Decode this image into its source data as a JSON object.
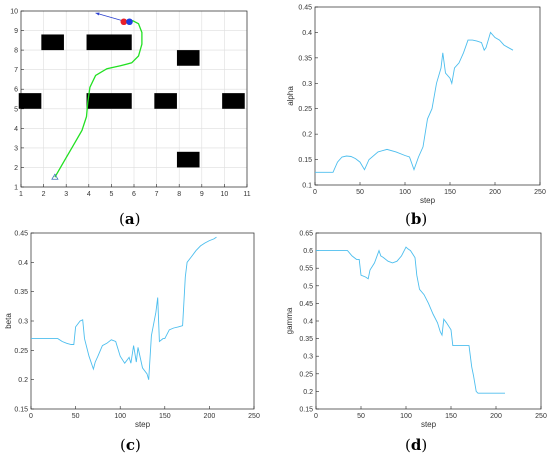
{
  "colors": {
    "line": "#4dbeee",
    "path": "#22e022",
    "obstacle": "#000000",
    "axis": "#262626",
    "grid": "#dedede",
    "start": "#3b6fb6",
    "goal_red": "#e8202a",
    "goal_blue": "#1f3fe0",
    "arrow": "#2a3fcf"
  },
  "chart_data": [
    {
      "type": "map",
      "caption": "a",
      "xlim": [
        1,
        11
      ],
      "ylim": [
        1,
        10
      ],
      "xticks": [
        1,
        2,
        3,
        4,
        5,
        6,
        7,
        8,
        9,
        10,
        11
      ],
      "yticks": [
        1,
        2,
        3,
        4,
        5,
        6,
        7,
        8,
        9,
        10
      ],
      "grid": true,
      "obstacles": [
        {
          "x0": 1.9,
          "x1": 2.9,
          "y0": 8.0,
          "y1": 8.8
        },
        {
          "x0": 3.9,
          "x1": 5.9,
          "y0": 8.0,
          "y1": 8.8
        },
        {
          "x0": 7.9,
          "x1": 8.9,
          "y0": 7.2,
          "y1": 8.0
        },
        {
          "x0": 0.9,
          "x1": 1.9,
          "y0": 5.0,
          "y1": 5.8
        },
        {
          "x0": 3.9,
          "x1": 5.9,
          "y0": 5.0,
          "y1": 5.8
        },
        {
          "x0": 6.9,
          "x1": 7.9,
          "y0": 5.0,
          "y1": 5.8
        },
        {
          "x0": 9.9,
          "x1": 10.9,
          "y0": 5.0,
          "y1": 5.8
        },
        {
          "x0": 7.9,
          "x1": 8.9,
          "y0": 2.0,
          "y1": 2.8
        }
      ],
      "path": [
        [
          2.5,
          1.5
        ],
        [
          2.9,
          2.3
        ],
        [
          3.3,
          3.1
        ],
        [
          3.7,
          3.9
        ],
        [
          3.9,
          4.6
        ],
        [
          3.95,
          5.3
        ],
        [
          4.05,
          6.1
        ],
        [
          4.3,
          6.7
        ],
        [
          4.8,
          7.05
        ],
        [
          5.4,
          7.2
        ],
        [
          5.9,
          7.35
        ],
        [
          6.2,
          7.7
        ],
        [
          6.35,
          8.3
        ],
        [
          6.35,
          8.9
        ],
        [
          6.2,
          9.35
        ],
        [
          5.95,
          9.5
        ],
        [
          5.7,
          9.5
        ]
      ],
      "start": [
        2.5,
        1.5
      ],
      "goal_red": [
        5.55,
        9.45
      ],
      "goal_blue": [
        5.8,
        9.45
      ],
      "arrow": {
        "from": [
          5.5,
          9.5
        ],
        "to": [
          4.3,
          9.9
        ]
      }
    },
    {
      "type": "line",
      "caption": "b",
      "xlabel": "step",
      "ylabel": "alpha",
      "xlim": [
        0,
        250
      ],
      "ylim": [
        0.1,
        0.45
      ],
      "xticks": [
        0,
        50,
        100,
        150,
        200,
        250
      ],
      "yticks": [
        0.1,
        0.15,
        0.2,
        0.25,
        0.3,
        0.35,
        0.4,
        0.45
      ],
      "ytick_labels": [
        "0.1",
        "0.15",
        "0.2",
        "0.25",
        "0.3",
        "0.35",
        "0.4",
        "0.45"
      ],
      "grid": false,
      "x": [
        0,
        20,
        25,
        30,
        35,
        40,
        45,
        50,
        55,
        60,
        70,
        80,
        90,
        100,
        105,
        110,
        115,
        120,
        125,
        130,
        135,
        140,
        142,
        145,
        150,
        152,
        155,
        160,
        165,
        170,
        175,
        180,
        185,
        188,
        190,
        195,
        200,
        205,
        210,
        215,
        220
      ],
      "y": [
        0.125,
        0.125,
        0.145,
        0.155,
        0.157,
        0.156,
        0.152,
        0.145,
        0.13,
        0.15,
        0.165,
        0.17,
        0.165,
        0.158,
        0.155,
        0.13,
        0.155,
        0.175,
        0.23,
        0.25,
        0.3,
        0.33,
        0.36,
        0.32,
        0.31,
        0.3,
        0.33,
        0.34,
        0.36,
        0.385,
        0.385,
        0.383,
        0.38,
        0.365,
        0.37,
        0.4,
        0.39,
        0.385,
        0.375,
        0.37,
        0.365
      ]
    },
    {
      "type": "line",
      "caption": "c",
      "xlabel": "step",
      "ylabel": "beta",
      "xlim": [
        0,
        250
      ],
      "ylim": [
        0.15,
        0.45
      ],
      "xticks": [
        0,
        50,
        100,
        150,
        200,
        250
      ],
      "yticks": [
        0.15,
        0.2,
        0.25,
        0.3,
        0.35,
        0.4,
        0.45
      ],
      "ytick_labels": [
        "0.15",
        "0.2",
        "0.25",
        "0.3",
        "0.35",
        "0.4",
        "0.45"
      ],
      "grid": false,
      "x": [
        0,
        20,
        25,
        30,
        35,
        40,
        45,
        48,
        50,
        55,
        58,
        60,
        65,
        70,
        72,
        75,
        80,
        85,
        90,
        95,
        100,
        105,
        110,
        112,
        115,
        118,
        120,
        125,
        130,
        132,
        135,
        140,
        142,
        144,
        148,
        150,
        155,
        160,
        165,
        170,
        173,
        175,
        180,
        185,
        190,
        195,
        200,
        205,
        208
      ],
      "y": [
        0.27,
        0.27,
        0.27,
        0.27,
        0.265,
        0.262,
        0.26,
        0.26,
        0.29,
        0.3,
        0.302,
        0.27,
        0.24,
        0.218,
        0.23,
        0.24,
        0.258,
        0.262,
        0.268,
        0.265,
        0.24,
        0.228,
        0.238,
        0.228,
        0.258,
        0.23,
        0.255,
        0.22,
        0.21,
        0.2,
        0.275,
        0.315,
        0.34,
        0.265,
        0.27,
        0.27,
        0.285,
        0.288,
        0.29,
        0.292,
        0.375,
        0.4,
        0.41,
        0.42,
        0.428,
        0.433,
        0.437,
        0.44,
        0.443
      ]
    },
    {
      "type": "line",
      "caption": "d",
      "xlabel": "step",
      "ylabel": "gamma",
      "xlim": [
        0,
        250
      ],
      "ylim": [
        0.15,
        0.65
      ],
      "xticks": [
        0,
        50,
        100,
        150,
        200,
        250
      ],
      "yticks": [
        0.15,
        0.2,
        0.25,
        0.3,
        0.35,
        0.4,
        0.45,
        0.5,
        0.55,
        0.6,
        0.65
      ],
      "ytick_labels": [
        "0.15",
        "0.2",
        "0.25",
        "0.3",
        "0.35",
        "0.4",
        "0.45",
        "0.5",
        "0.55",
        "0.6",
        "0.65"
      ],
      "grid": false,
      "x": [
        0,
        20,
        30,
        35,
        40,
        45,
        48,
        50,
        55,
        58,
        60,
        65,
        70,
        72,
        75,
        80,
        85,
        90,
        95,
        100,
        102,
        105,
        110,
        112,
        115,
        120,
        125,
        130,
        135,
        138,
        140,
        142,
        145,
        150,
        152,
        155,
        160,
        165,
        170,
        173,
        175,
        178,
        180,
        185,
        190,
        200,
        205,
        210
      ],
      "y": [
        0.6,
        0.6,
        0.6,
        0.6,
        0.585,
        0.575,
        0.575,
        0.53,
        0.525,
        0.52,
        0.545,
        0.565,
        0.6,
        0.585,
        0.58,
        0.57,
        0.565,
        0.57,
        0.585,
        0.61,
        0.605,
        0.6,
        0.58,
        0.53,
        0.49,
        0.475,
        0.45,
        0.42,
        0.395,
        0.37,
        0.36,
        0.405,
        0.395,
        0.375,
        0.33,
        0.33,
        0.33,
        0.33,
        0.33,
        0.27,
        0.245,
        0.2,
        0.195,
        0.195,
        0.195,
        0.195,
        0.195,
        0.195
      ]
    }
  ]
}
